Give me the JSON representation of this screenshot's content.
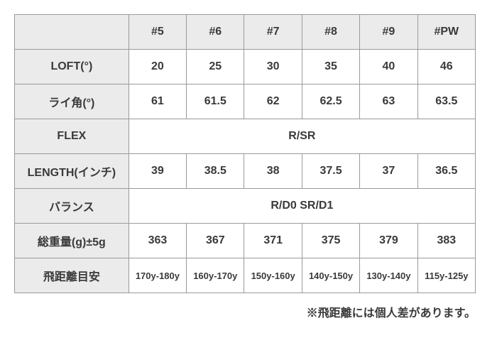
{
  "table": {
    "header": {
      "blank": "",
      "cols": [
        "#5",
        "#6",
        "#7",
        "#8",
        "#9",
        "#PW"
      ]
    },
    "rows": [
      {
        "label": "LOFT(°)",
        "cells": [
          "20",
          "25",
          "30",
          "35",
          "40",
          "46"
        ]
      },
      {
        "label": "ライ角(°)",
        "cells": [
          "61",
          "61.5",
          "62",
          "62.5",
          "63",
          "63.5"
        ]
      },
      {
        "label": "FLEX",
        "merged": "R/SR"
      },
      {
        "label": "LENGTH(インチ)",
        "cells": [
          "39",
          "38.5",
          "38",
          "37.5",
          "37",
          "36.5"
        ]
      },
      {
        "label": "バランス",
        "merged": "R/D0  SR/D1"
      },
      {
        "label": "総重量(g)±5g",
        "cells": [
          "363",
          "367",
          "371",
          "375",
          "379",
          "383"
        ]
      },
      {
        "label": "飛距離目安",
        "cells": [
          "170y-180y",
          "160y-170y",
          "150y-160y",
          "140y-150y",
          "130y-140y",
          "115y-125y"
        ],
        "small": true
      }
    ]
  },
  "footnote": "※飛距離には個人差があります。",
  "colors": {
    "border": "#9a9a9a",
    "label_bg": "#ebebeb",
    "data_bg": "#ffffff",
    "text": "#3a3a3a"
  }
}
